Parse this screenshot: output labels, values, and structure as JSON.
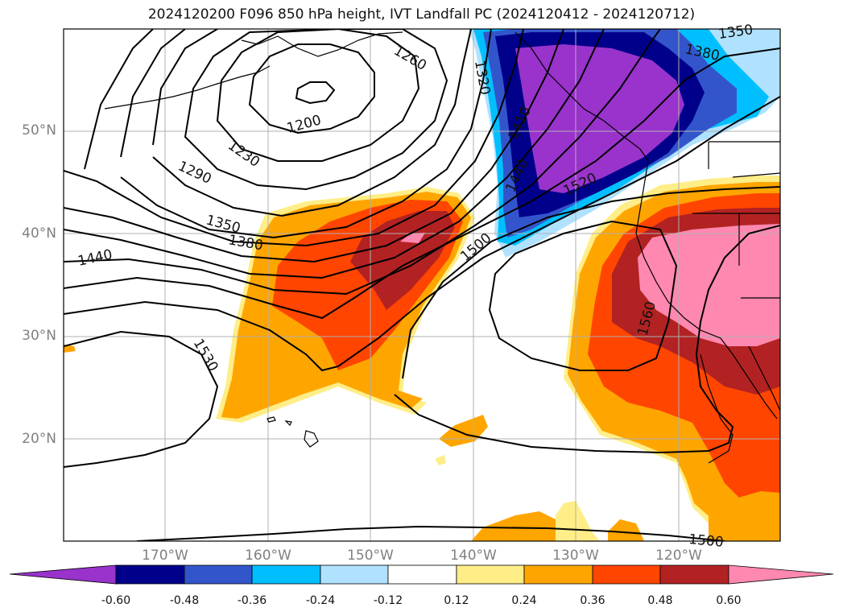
{
  "title": "2024120200 F096 850 hPa height, IVT Landfall PC (2024120412 - 2024120712)",
  "map": {
    "lat_labels": [
      "50°N",
      "40°N",
      "30°N",
      "20°N"
    ],
    "lon_labels": [
      "170°W",
      "160°W",
      "150°W",
      "140°W",
      "130°W",
      "120°W"
    ],
    "contour_labels": [
      "1200",
      "1230",
      "1260",
      "1290",
      "1320",
      "1350",
      "1350",
      "1380",
      "1380",
      "1410",
      "1440",
      "1440",
      "1500",
      "1500",
      "1520",
      "1530",
      "1560"
    ]
  },
  "colorbar": {
    "ticks": [
      "-0.60",
      "-0.48",
      "-0.36",
      "-0.24",
      "-0.12",
      "0.12",
      "0.24",
      "0.36",
      "0.48",
      "0.60"
    ],
    "colors": [
      "#9933cc",
      "#00008b",
      "#3355cc",
      "#00bfff",
      "#b0e2ff",
      "#ffffff",
      "#ffee88",
      "#ffa500",
      "#ff4500",
      "#b22222",
      "#ff88b0"
    ]
  }
}
